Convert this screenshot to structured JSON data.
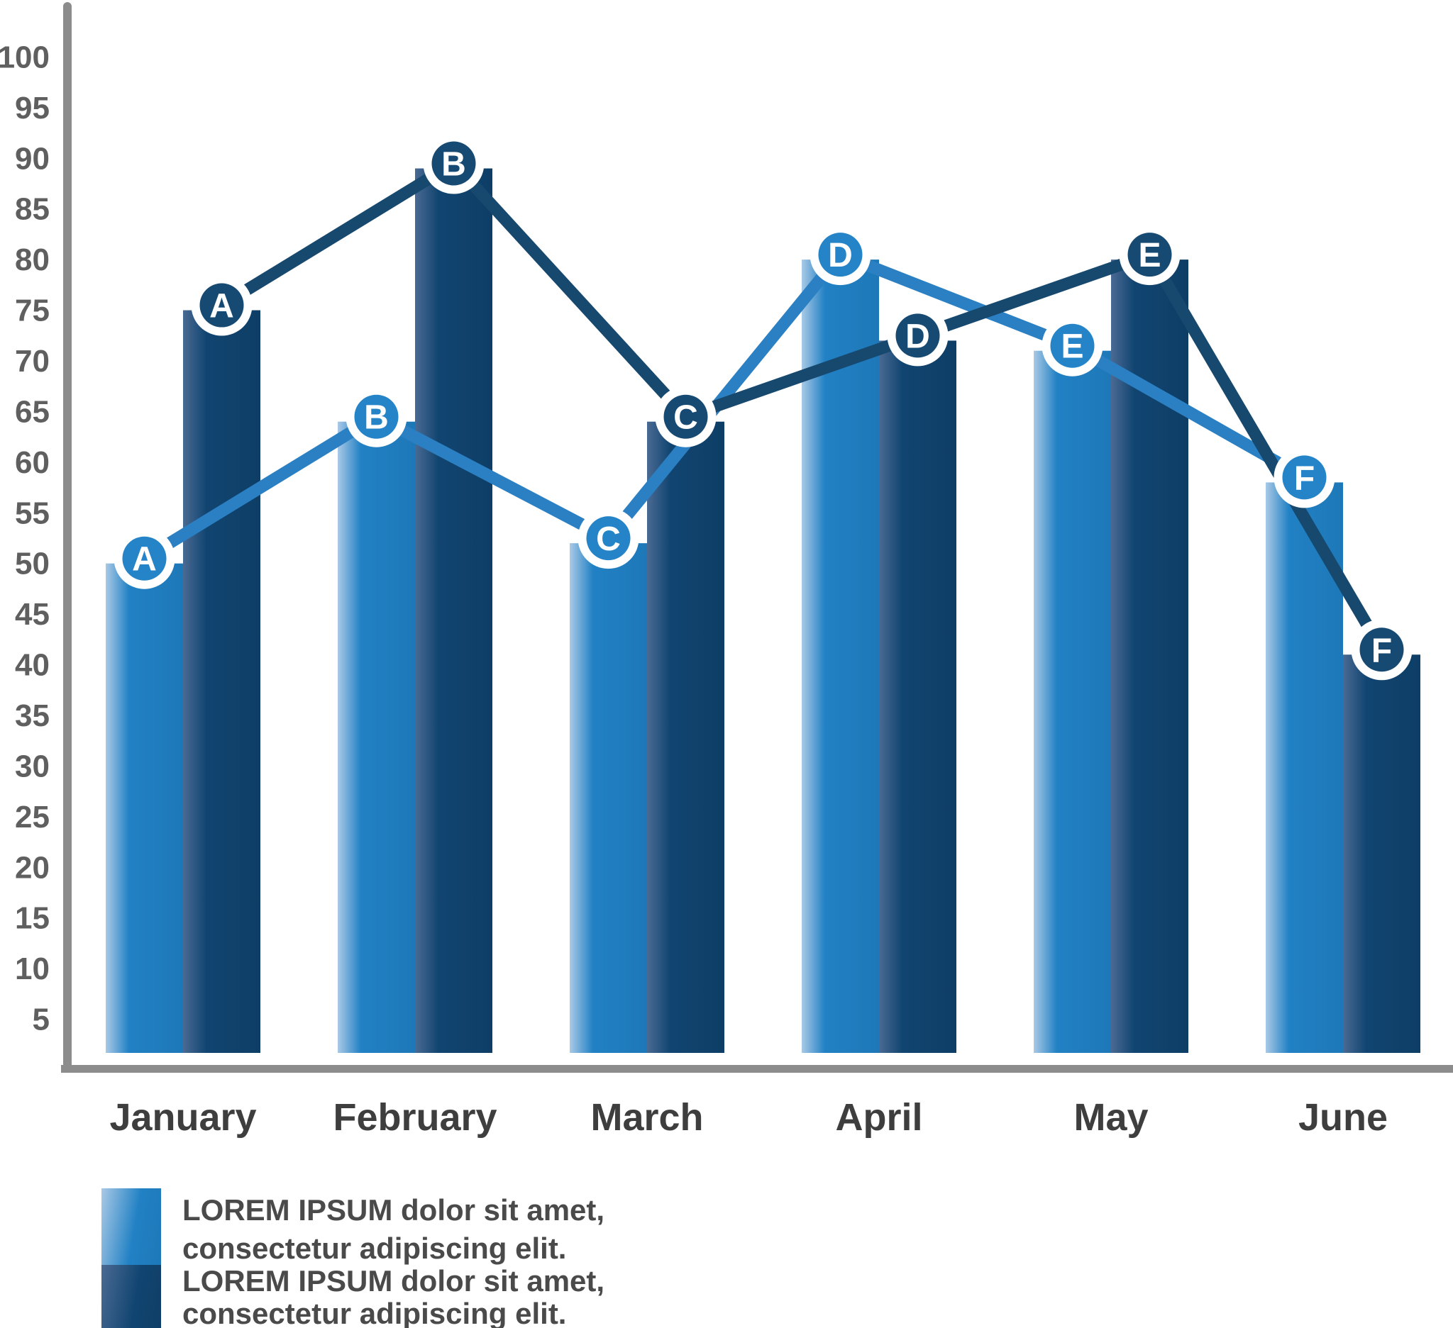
{
  "chart_data": {
    "type": "bar+line combo",
    "title": "",
    "categories": [
      "January",
      "February",
      "March",
      "April",
      "May",
      "June"
    ],
    "marker_letters": [
      "A",
      "B",
      "C",
      "D",
      "E",
      "F"
    ],
    "y_axis": {
      "min": 0,
      "max": 100,
      "tick_step": 5,
      "tick_labels": [
        5,
        10,
        15,
        20,
        25,
        30,
        35,
        40,
        45,
        50,
        55,
        60,
        65,
        70,
        75,
        80,
        85,
        90,
        95,
        100
      ],
      "axis_color": "#8c8c8c",
      "tick_label_color": "#5f5f5f"
    },
    "x_axis": {
      "label_color": "#3e3e3e"
    },
    "grid": "off",
    "legend_position": "bottom-left",
    "series": [
      {
        "name": "series-light",
        "legend_line1": "LOREM IPSUM dolor sit amet,",
        "legend_line2": "consectetur adipiscing elit.",
        "values": [
          50,
          64,
          52,
          80,
          71,
          58
        ],
        "bar_color": "#2181c4",
        "bar_highlight": "#a9c9e6",
        "bar_edge": "#1e78b8",
        "line_color": "#2b80c3",
        "marker_color": "#2484c7",
        "marker_text_color": "#ffffff"
      },
      {
        "name": "series-dark",
        "legend_line1": "LOREM IPSUM dolor sit amet,",
        "legend_line2": "consectetur adipiscing elit.",
        "values": [
          75,
          89,
          64,
          72,
          80,
          41
        ],
        "bar_color": "#114571",
        "bar_highlight": "#4a6a93",
        "bar_edge": "#0e3e66",
        "line_color": "#17486e",
        "marker_color": "#174a72",
        "marker_text_color": "#ffffff"
      }
    ]
  },
  "legend": {
    "items": [
      {
        "line1": "LOREM IPSUM dolor sit amet,",
        "line2": "consectetur adipiscing elit."
      },
      {
        "line1": "LOREM IPSUM dolor sit amet,",
        "line2": "consectetur adipiscing elit."
      }
    ]
  }
}
